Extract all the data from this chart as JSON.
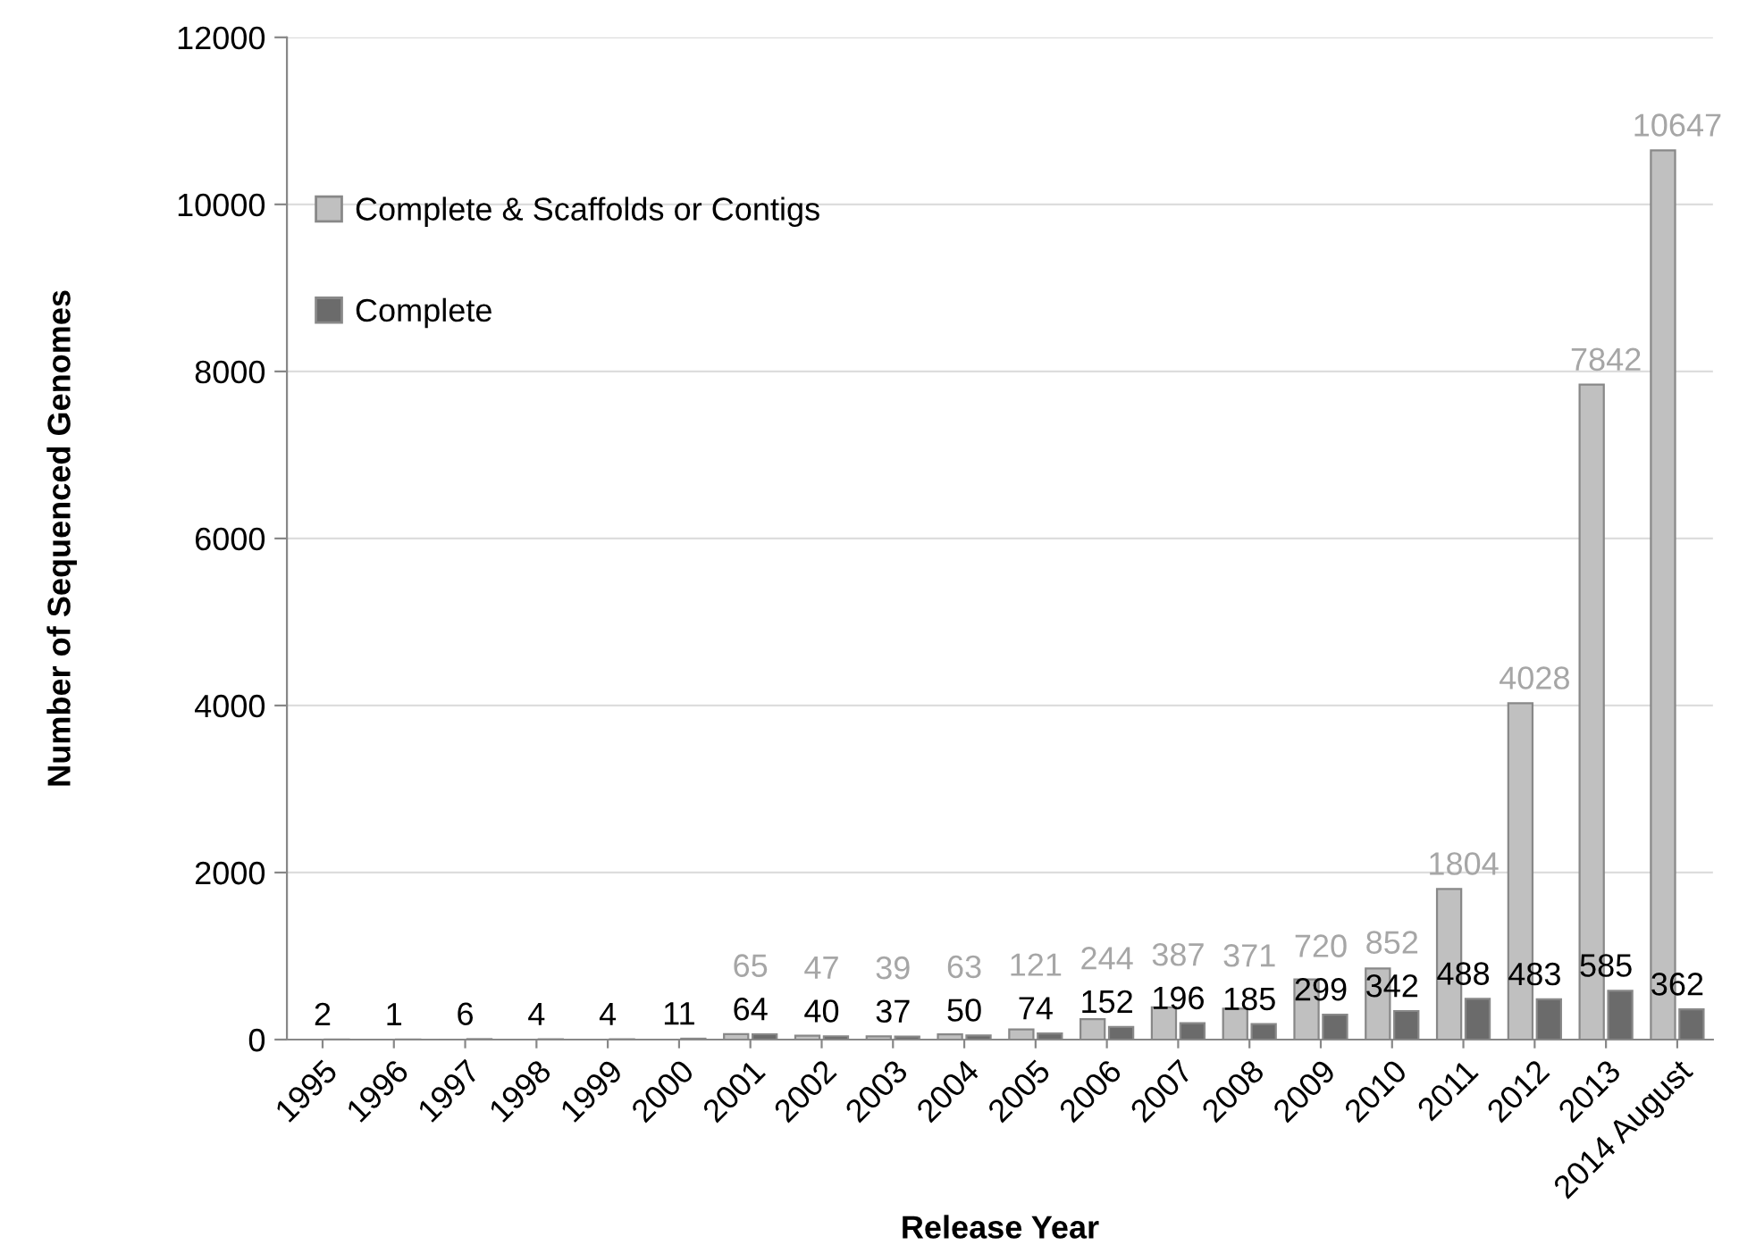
{
  "chart_data": {
    "type": "bar",
    "xlabel": "Release Year",
    "ylabel": "Number of Sequenced Genomes",
    "categories": [
      "1995",
      "1996",
      "1997",
      "1998",
      "1999",
      "2000",
      "2001",
      "2002",
      "2003",
      "2004",
      "2005",
      "2006",
      "2007",
      "2008",
      "2009",
      "2010",
      "2011",
      "2012",
      "2013",
      "2014 August"
    ],
    "series": [
      {
        "name": "Complete & Scaffolds or Contigs",
        "color": "#c0c0c0",
        "values": [
          null,
          null,
          null,
          null,
          null,
          null,
          65,
          47,
          39,
          63,
          121,
          244,
          387,
          371,
          720,
          852,
          1804,
          4028,
          7842,
          10647
        ],
        "value_labels": [
          null,
          null,
          null,
          null,
          null,
          null,
          "65",
          "47",
          "39",
          "63",
          "121",
          "244",
          "387",
          "371",
          "720",
          "852",
          "1804",
          "4028",
          "7842",
          "10647"
        ]
      },
      {
        "name": "Complete",
        "color": "#6b6b6b",
        "values": [
          2,
          1,
          6,
          4,
          4,
          11,
          64,
          40,
          37,
          50,
          74,
          152,
          196,
          185,
          299,
          342,
          488,
          483,
          585,
          362
        ],
        "value_labels": [
          "2",
          "1",
          "6",
          "4",
          "4",
          "11",
          "64",
          "40",
          "37",
          "50",
          "74",
          "152",
          "196",
          "185",
          "299",
          "342",
          "488",
          "483",
          "585",
          "362"
        ]
      }
    ],
    "ylim": [
      0,
      12000
    ],
    "yticks": [
      0,
      2000,
      4000,
      6000,
      8000,
      10000,
      12000
    ],
    "grid": "y",
    "legend": "top left"
  }
}
